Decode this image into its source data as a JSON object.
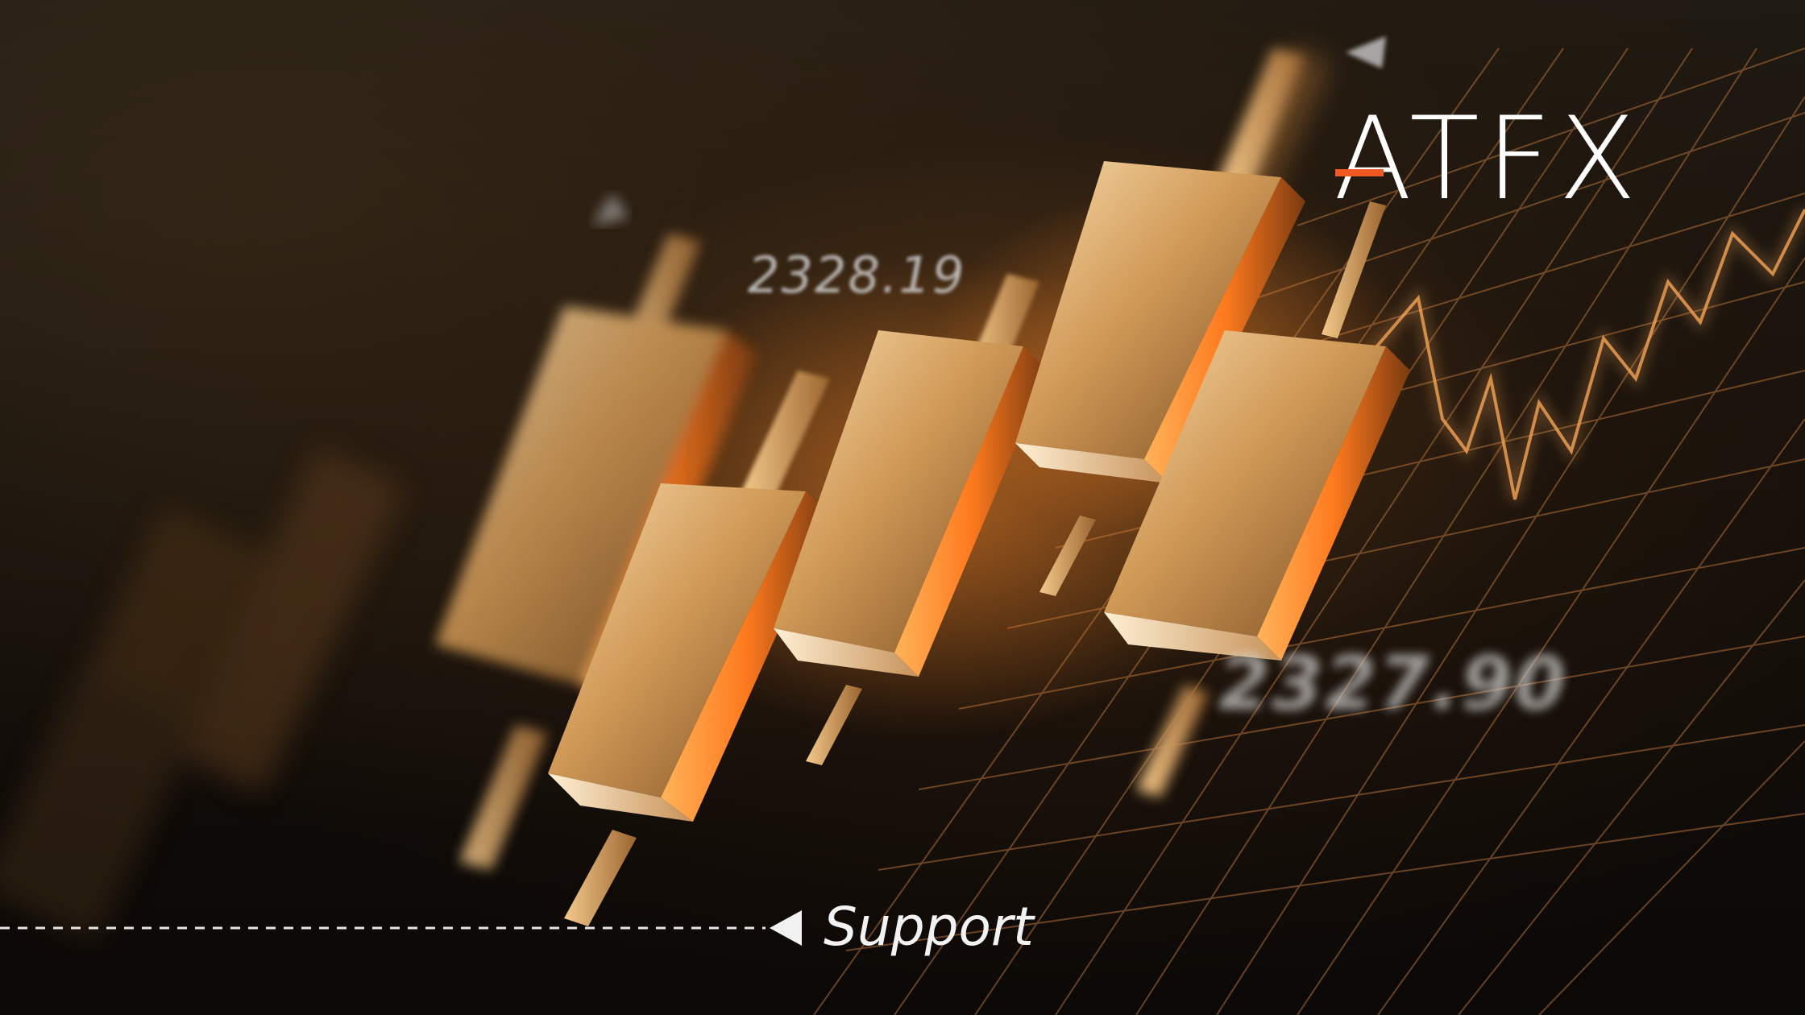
{
  "brand": {
    "logo_text": "ATFX",
    "accent_color": "#f05a22"
  },
  "prices": {
    "upper": "2328.19",
    "lower": "2327.90"
  },
  "support": {
    "label": "Support"
  },
  "palette": {
    "gold_light": "#f6d29a",
    "gold_mid": "#c88a45",
    "gold_dark": "#6b4420",
    "glow": "#ff8a2a",
    "grid": "#b0703a"
  }
}
